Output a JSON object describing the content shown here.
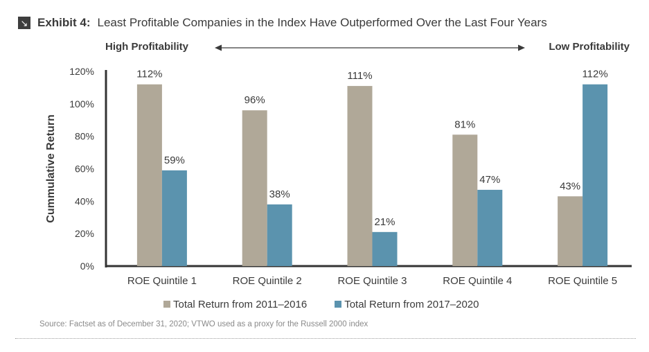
{
  "header": {
    "icon": "arrow-down-right-icon",
    "exhibit_label": "Exhibit 4:",
    "title": "Least Profitable Companies in the Index Have Outperformed Over the Last Four Years"
  },
  "profitability": {
    "left_label": "High Profitability",
    "right_label": "Low Profitability"
  },
  "chart_data": {
    "type": "bar",
    "categories": [
      "ROE Quintile 1",
      "ROE Quintile 2",
      "ROE Quintile 3",
      "ROE Quintile 4",
      "ROE Quintile 5"
    ],
    "series": [
      {
        "name": "Total Return from  2011–2016",
        "values": [
          112,
          96,
          111,
          81,
          43
        ],
        "color": "#b0a898"
      },
      {
        "name": "Total Return from  2017–2020",
        "values": [
          59,
          38,
          21,
          47,
          112
        ],
        "color": "#5b93ae"
      }
    ],
    "value_suffix": "%",
    "ylabel": "Cummulative Return",
    "ylim": [
      0,
      120
    ],
    "yticks": [
      0,
      20,
      40,
      60,
      80,
      100,
      120
    ],
    "ytick_labels": [
      "0%",
      "20%",
      "40%",
      "60%",
      "80%",
      "100%",
      "120%"
    ],
    "grid": false,
    "legend_position": "bottom"
  },
  "source": "Source: Factset as of December 31, 2020; VTWO used as a proxy for the Russell 2000 index"
}
